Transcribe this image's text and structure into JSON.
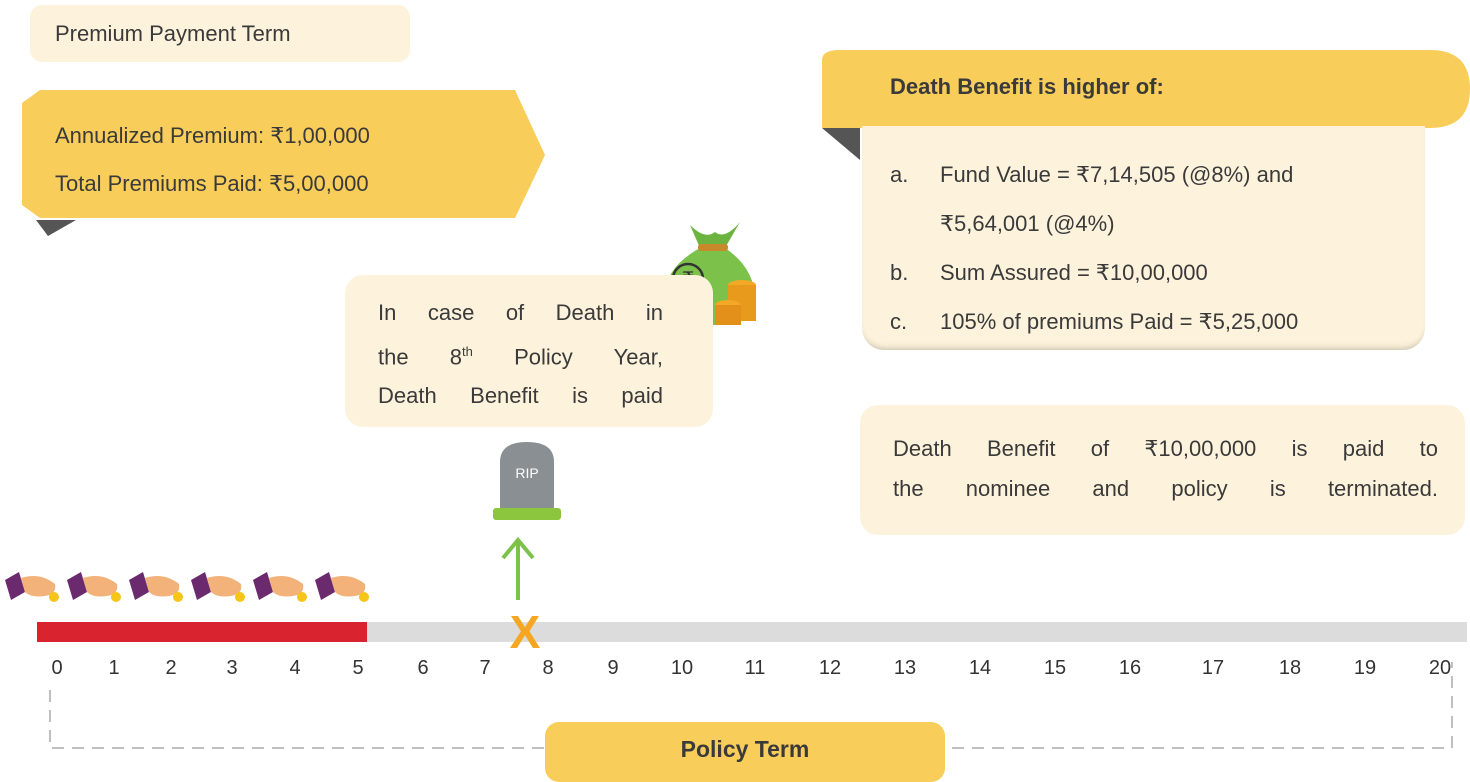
{
  "premium_term": "Premium Payment Term",
  "premium_box": {
    "lines": [
      "Annualized Premium: ₹1,00,000",
      "Total Premiums Paid: ₹5,00,000"
    ]
  },
  "death_note": {
    "line1": "In case of Death in",
    "line2_pre": "the 8",
    "line2_sup": "th",
    "line2_post": " Policy Year,",
    "line3": "Death Benefit is paid"
  },
  "tombstone_label": "RIP",
  "benefit_box": {
    "title": "Death Benefit is higher of:",
    "items": [
      {
        "marker": "a.",
        "lines": [
          "Fund Value = ₹7,14,505 (@8%) and",
          "₹5,64,001 (@4%)"
        ]
      },
      {
        "marker": "b.",
        "lines": [
          "Sum Assured = ₹10,00,000"
        ]
      },
      {
        "marker": "c.",
        "lines": [
          "105% of premiums Paid = ₹5,25,000"
        ]
      }
    ]
  },
  "result": {
    "lines": [
      "Death Benefit of ₹10,00,000 is paid to",
      "the nominee and policy is terminated."
    ]
  },
  "timeline": {
    "years": [
      0,
      1,
      2,
      3,
      4,
      5,
      6,
      7,
      8,
      9,
      10,
      11,
      12,
      13,
      14,
      15,
      16,
      17,
      18,
      19,
      20
    ],
    "death_marker": "X"
  },
  "policy_term": "Policy Term"
}
